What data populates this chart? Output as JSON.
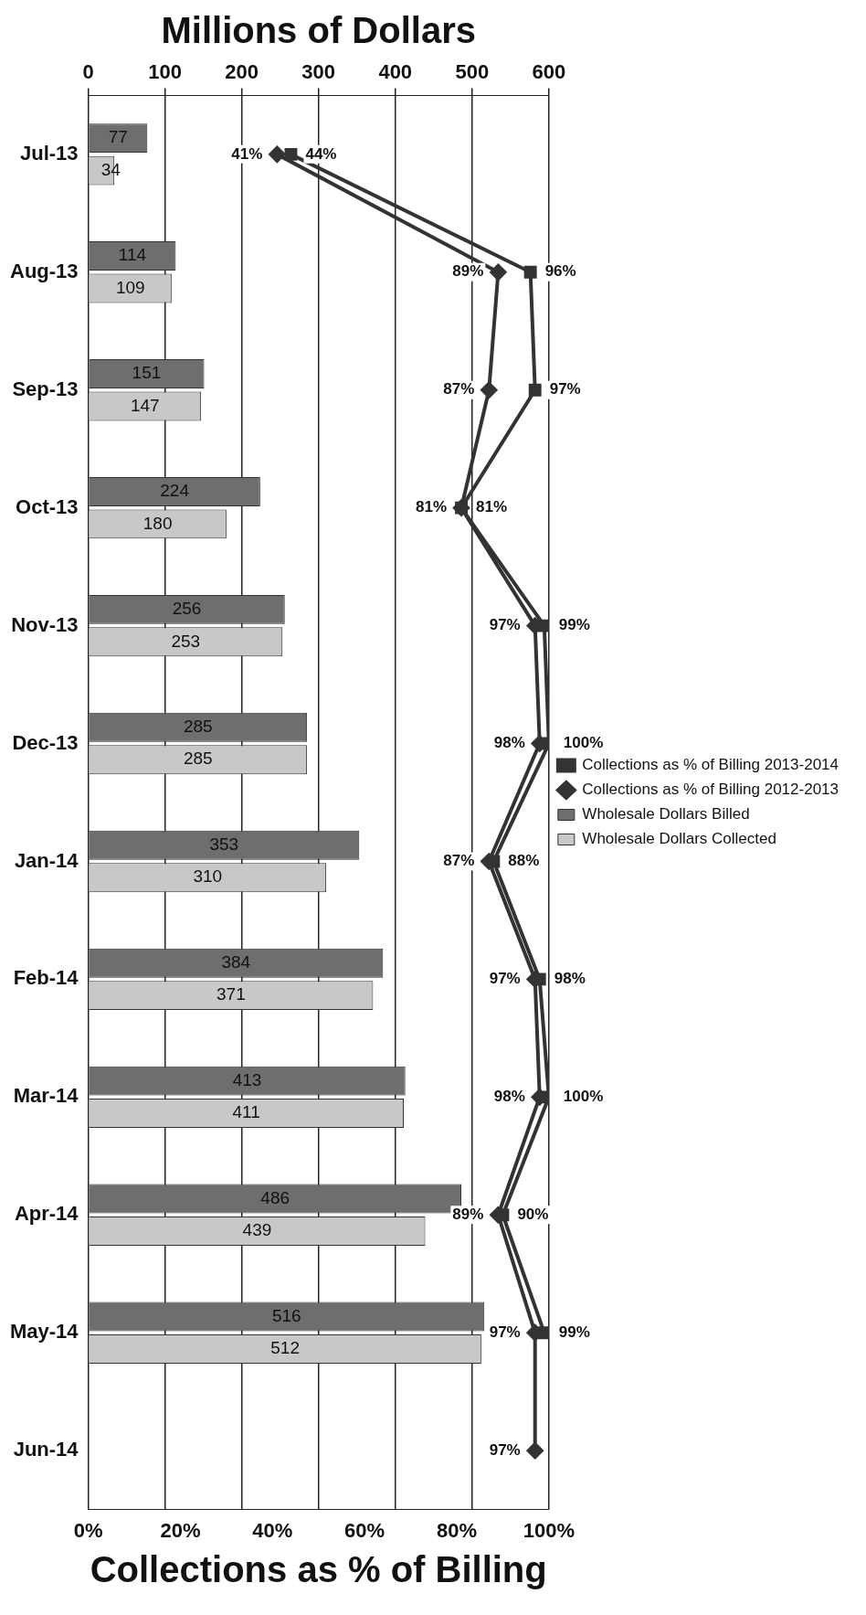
{
  "chart_data": {
    "type": "bar",
    "orientation": "horizontal",
    "xlabel": "Millions of Dollars",
    "x2label": "Collections as % of Billing",
    "categories": [
      "Jul-13",
      "Aug-13",
      "Sep-13",
      "Oct-13",
      "Nov-13",
      "Dec-13",
      "Jan-14",
      "Feb-14",
      "Mar-14",
      "Apr-14",
      "May-14",
      "Jun-14"
    ],
    "xlim": [
      0,
      600
    ],
    "xticks": [
      0,
      100,
      200,
      300,
      400,
      500,
      600
    ],
    "x2lim": [
      0,
      100
    ],
    "x2ticks": [
      {
        "value": 0,
        "label": "0%"
      },
      {
        "value": 20,
        "label": "20%"
      },
      {
        "value": 40,
        "label": "40%"
      },
      {
        "value": 60,
        "label": "60%"
      },
      {
        "value": 80,
        "label": "80%"
      },
      {
        "value": 100,
        "label": "100%"
      }
    ],
    "grid": "x",
    "legend": "right",
    "series": [
      {
        "name": "Wholesale Dollars Billed",
        "color": "#6e6e6e",
        "values": [
          77,
          114,
          151,
          224,
          256,
          285,
          353,
          384,
          413,
          486,
          516,
          null
        ],
        "value_labels": [
          "77",
          "114",
          "151",
          "224",
          "256",
          "285",
          "353",
          "384",
          "413",
          "486",
          "516",
          null
        ]
      },
      {
        "name": "Wholesale Dollars Collected",
        "color": "#c8c8c8",
        "values": [
          34,
          109,
          147,
          180,
          253,
          285,
          310,
          371,
          411,
          439,
          512,
          null
        ],
        "value_labels": [
          "34",
          "109",
          "147",
          "180",
          "253",
          "285",
          "310",
          "371",
          "411",
          "439",
          "512",
          null
        ]
      },
      {
        "name": "Collections as % of Billing 2013-2014",
        "type": "line",
        "axis": "x2",
        "marker": "square",
        "color": "#333333",
        "values": [
          44,
          96,
          97,
          81,
          99,
          100,
          88,
          98,
          100,
          90,
          99,
          null
        ],
        "value_labels": [
          "44%",
          "96%",
          "97%",
          "81%",
          "99%",
          "100%",
          "88%",
          "98%",
          "100%",
          "90%",
          "99%",
          null
        ]
      },
      {
        "name": "Collections as % of Billing 2012-2013",
        "type": "line",
        "axis": "x2",
        "marker": "diamond",
        "color": "#333333",
        "values": [
          41,
          89,
          87,
          81,
          97,
          98,
          87,
          97,
          98,
          89,
          97,
          97
        ],
        "value_labels": [
          "41%",
          "89%",
          "87%",
          "81%",
          "97%",
          "98%",
          "87%",
          "97%",
          "98%",
          "89%",
          "97%",
          "97%"
        ]
      }
    ]
  }
}
